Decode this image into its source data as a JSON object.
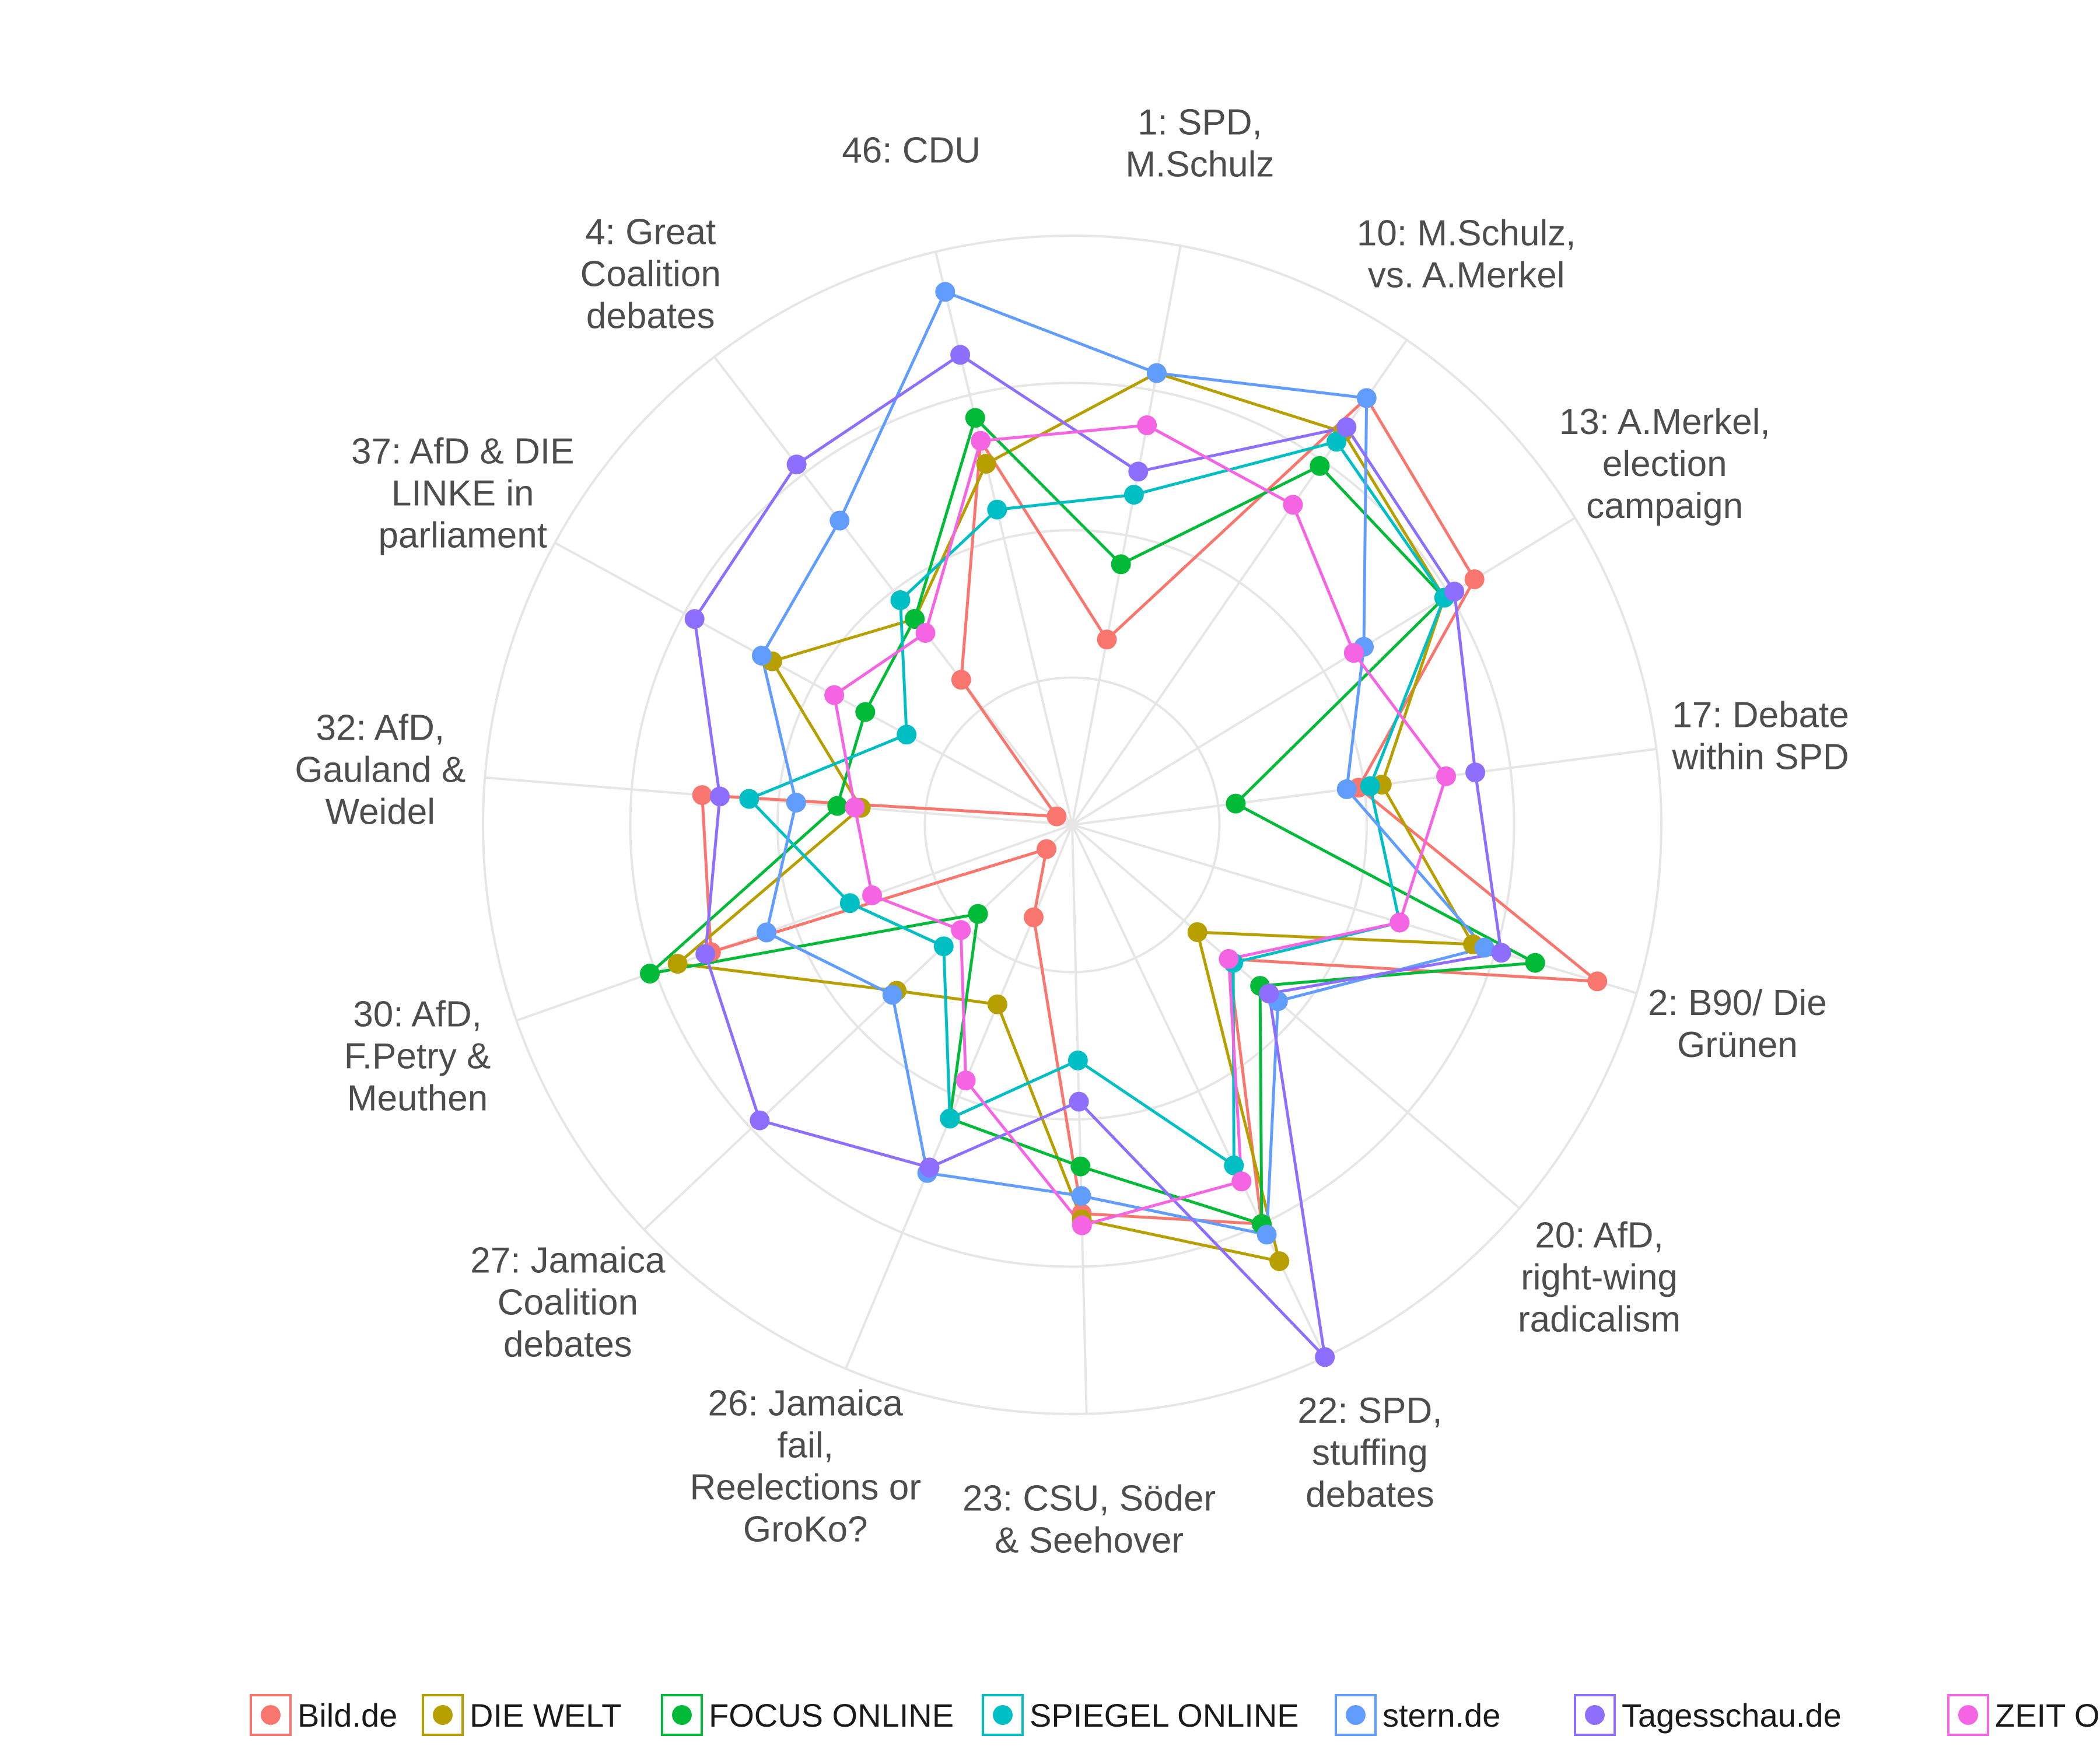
{
  "chart_data": {
    "type": "radar",
    "grid": true,
    "rlim": [
      0,
      1
    ],
    "categories": [
      "1: SPD, M.Schulz",
      "10: M.Schulz, vs. A.Merkel",
      "13: A.Merkel, election campaign",
      "17: Debate within SPD",
      "2: B90/ Die Grünen",
      "20: AfD, right-wing radicalism",
      "22: SPD, stuffing debates",
      "23: CSU, Söder & Seehover",
      "26: Jamaica fail, Reelections or GroKo?",
      "27: Jamaica Coalition debates",
      "30: AfD, F.Petry & Meuthen",
      "32: AfD, Gauland & Weidel",
      "37: AfD & DIE LINKE in parliament",
      "4: Great Coalition debates",
      "46: CDU"
    ],
    "series": [
      {
        "name": "Bild.de",
        "color": "#F8766D",
        "values": [
          0.32,
          0.88,
          0.8,
          0.49,
          0.93,
          0.35,
          0.75,
          0.66,
          0.17,
          0.06,
          0.65,
          0.63,
          0.03,
          0.31,
          0.67
        ]
      },
      {
        "name": "DIE WELT",
        "color": "#B79F00",
        "values": [
          0.78,
          0.81,
          0.74,
          0.53,
          0.71,
          0.28,
          0.82,
          0.67,
          0.33,
          0.41,
          0.71,
          0.36,
          0.58,
          0.44,
          0.63
        ]
      },
      {
        "name": "FOCUS ONLINE",
        "color": "#00BA38",
        "values": [
          0.45,
          0.74,
          0.74,
          0.28,
          0.82,
          0.42,
          0.75,
          0.58,
          0.54,
          0.22,
          0.76,
          0.4,
          0.4,
          0.44,
          0.71
        ]
      },
      {
        "name": "SPIEGEL ONLINE",
        "color": "#00BFC4",
        "values": [
          0.57,
          0.79,
          0.74,
          0.51,
          0.58,
          0.36,
          0.64,
          0.4,
          0.54,
          0.3,
          0.4,
          0.55,
          0.32,
          0.48,
          0.55
        ]
      },
      {
        "name": "stern.de",
        "color": "#619CFF",
        "values": [
          0.78,
          0.88,
          0.58,
          0.47,
          0.73,
          0.46,
          0.77,
          0.63,
          0.64,
          0.42,
          0.55,
          0.47,
          0.6,
          0.65,
          0.93
        ]
      },
      {
        "name": "Tagesschau.de",
        "color": "#8E6EFF",
        "values": [
          0.61,
          0.82,
          0.76,
          0.69,
          0.76,
          0.44,
          1.0,
          0.47,
          0.63,
          0.73,
          0.66,
          0.6,
          0.73,
          0.77,
          0.82
        ]
      },
      {
        "name": "ZEIT ONLINE",
        "color": "#F564E3",
        "values": [
          0.69,
          0.66,
          0.56,
          0.64,
          0.58,
          0.35,
          0.67,
          0.68,
          0.47,
          0.26,
          0.36,
          0.37,
          0.46,
          0.41,
          0.67
        ]
      }
    ],
    "legend": "bottom"
  },
  "colors": {
    "Bild.de": "#F8766D",
    "DIE WELT": "#B79F00",
    "FOCUS ONLINE": "#00BA38",
    "SPIEGEL ONLINE": "#00BFC4",
    "stern.de": "#619CFF",
    "Tagesschau.de": "#8E6EFF",
    "ZEIT ONLINE": "#F564E3"
  }
}
